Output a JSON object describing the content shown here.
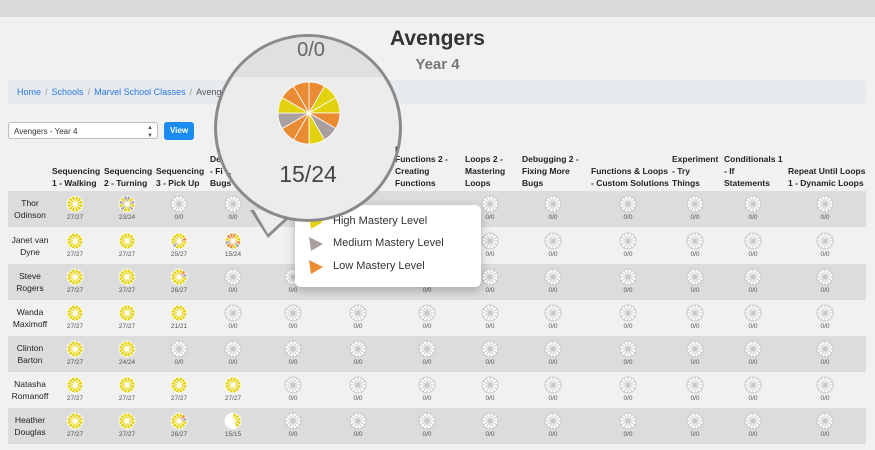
{
  "page": {
    "title": "Avengers",
    "subtitle": "Year 4"
  },
  "breadcrumb": [
    "Home",
    "Schools",
    "Marvel School Classes",
    "Avengers"
  ],
  "class_select": {
    "value": "Avengers - Year 4"
  },
  "view_button": "View",
  "colors": {
    "high": "#e3d20e",
    "medium": "#aa9f9f",
    "low": "#e88b33",
    "empty": "#ffffff",
    "empty_stroke": "#c7c7c7",
    "button": "#1a8cf0",
    "link": "#2a7ae2"
  },
  "columns": [
    {
      "label": "Sequencing\n1 - Walking"
    },
    {
      "label": "Sequencing\n2 - Turning"
    },
    {
      "label": "Sequencing\n3 - Pick Up"
    },
    {
      "label": "De\n- Fi\nBugs"
    },
    {
      "label": ""
    },
    {
      "label": ""
    },
    {
      "label": "Functions 2 -\nCreating\nFunctions"
    },
    {
      "label": "Loops 2 -\nMastering\nLoops"
    },
    {
      "label": "Debugging 2 -\nFixing More\nBugs"
    },
    {
      "label": "Functions & Loops\n- Custom Solutions"
    },
    {
      "label": "Experiment\n- Try\nThings"
    },
    {
      "label": "Conditionals 1\n- If\nStatements"
    },
    {
      "label": "Repeat Until Loops\n1 - Dynamic Loops"
    }
  ],
  "students": [
    {
      "name": "Thor\nOdinson",
      "scores": [
        "27/27",
        "23/24",
        "0/0",
        "0/0",
        "",
        "",
        "",
        "0/0",
        "0/0",
        "0/0",
        "0/0",
        "0/0",
        "0/0"
      ]
    },
    {
      "name": "Janet van\nDyne",
      "scores": [
        "27/27",
        "27/27",
        "25/27",
        "15/24",
        "",
        "",
        "",
        "0/0",
        "0/0",
        "0/0",
        "0/0",
        "0/0",
        "0/0"
      ]
    },
    {
      "name": "Steve\nRogers",
      "scores": [
        "27/27",
        "27/27",
        "26/27",
        "0/0",
        "0/0",
        "",
        "0/0",
        "0/0",
        "0/0",
        "0/0",
        "0/0",
        "0/0",
        "0/0"
      ]
    },
    {
      "name": "Wanda\nMaximoff",
      "scores": [
        "27/27",
        "27/27",
        "21/21",
        "0/0",
        "0/0",
        "0/0",
        "0/0",
        "0/0",
        "0/0",
        "0/0",
        "0/0",
        "0/0",
        "0/0"
      ]
    },
    {
      "name": "Clinton\nBarton",
      "scores": [
        "27/27",
        "24/24",
        "0/0",
        "0/0",
        "0/0",
        "0/0",
        "0/0",
        "0/0",
        "0/0",
        "0/0",
        "0/0",
        "0/0",
        "0/0"
      ]
    },
    {
      "name": "Natasha\nRomanoff",
      "scores": [
        "27/27",
        "27/27",
        "27/27",
        "27/27",
        "0/0",
        "0/0",
        "0/0",
        "0/0",
        "0/0",
        "0/0",
        "0/0",
        "0/0",
        "0/0"
      ]
    },
    {
      "name": "Heather\nDouglas",
      "scores": [
        "27/27",
        "27/27",
        "26/27",
        "15/15",
        "0/0",
        "0/0",
        "0/0",
        "0/0",
        "0/0",
        "0/0",
        "0/0",
        "0/0",
        "0/0"
      ]
    }
  ],
  "legend": {
    "high": "High Mastery Level",
    "medium": "Medium Mastery Level",
    "low": "Low Mastery Level"
  },
  "magnifier": {
    "previous_score": "0/0",
    "score": "15/24"
  }
}
